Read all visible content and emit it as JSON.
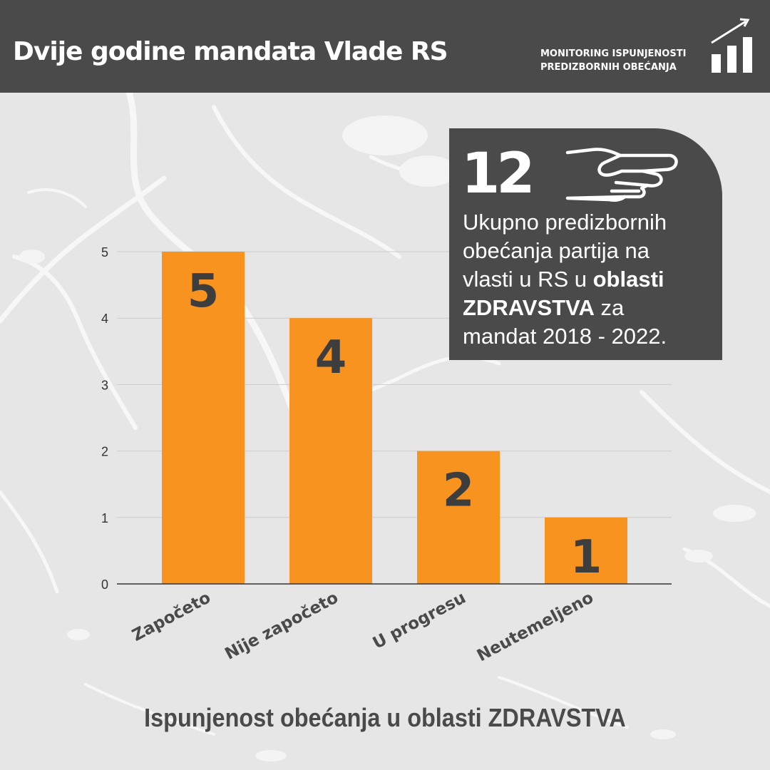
{
  "header": {
    "title": "Dvije godine mandata Vlade RS",
    "badge_line1": "MONITORING ISPUNJENOSTI",
    "badge_line2": "PREDIZBORNIH OBEĆANJA",
    "badge_icon": "bar-chart-trend-icon"
  },
  "info_box": {
    "number": "12",
    "icon": "pointing-hand-icon",
    "line1": "Ukupno predizbornih",
    "line2": "obećanja partija na",
    "line3_pre": "vlasti u RS u ",
    "line3_bold": "oblasti",
    "line4_bold": "ZDRAVSTVA",
    "line4_post": " za",
    "line5": "mandat 2018 - 2022."
  },
  "colors": {
    "header_bg": "#4a4a4a",
    "bar": "#f7931e",
    "background": "#e6e6e6",
    "text_dark": "#4a4a4a"
  },
  "chart_data": {
    "type": "bar",
    "title": "Ispunjenost obećanja u oblasti ZDRAVSTVA",
    "categories": [
      "Započeto",
      "Nije započeto",
      "U progresu",
      "Neutemeljeno"
    ],
    "values": [
      5,
      4,
      2,
      1
    ],
    "data_labels": [
      "5",
      "4",
      "2",
      "1"
    ],
    "yticks": [
      "0",
      "1",
      "2",
      "3",
      "4",
      "5"
    ],
    "ylim": [
      0,
      5
    ],
    "grid": true,
    "legend": "none",
    "xlabel": "",
    "ylabel": ""
  }
}
